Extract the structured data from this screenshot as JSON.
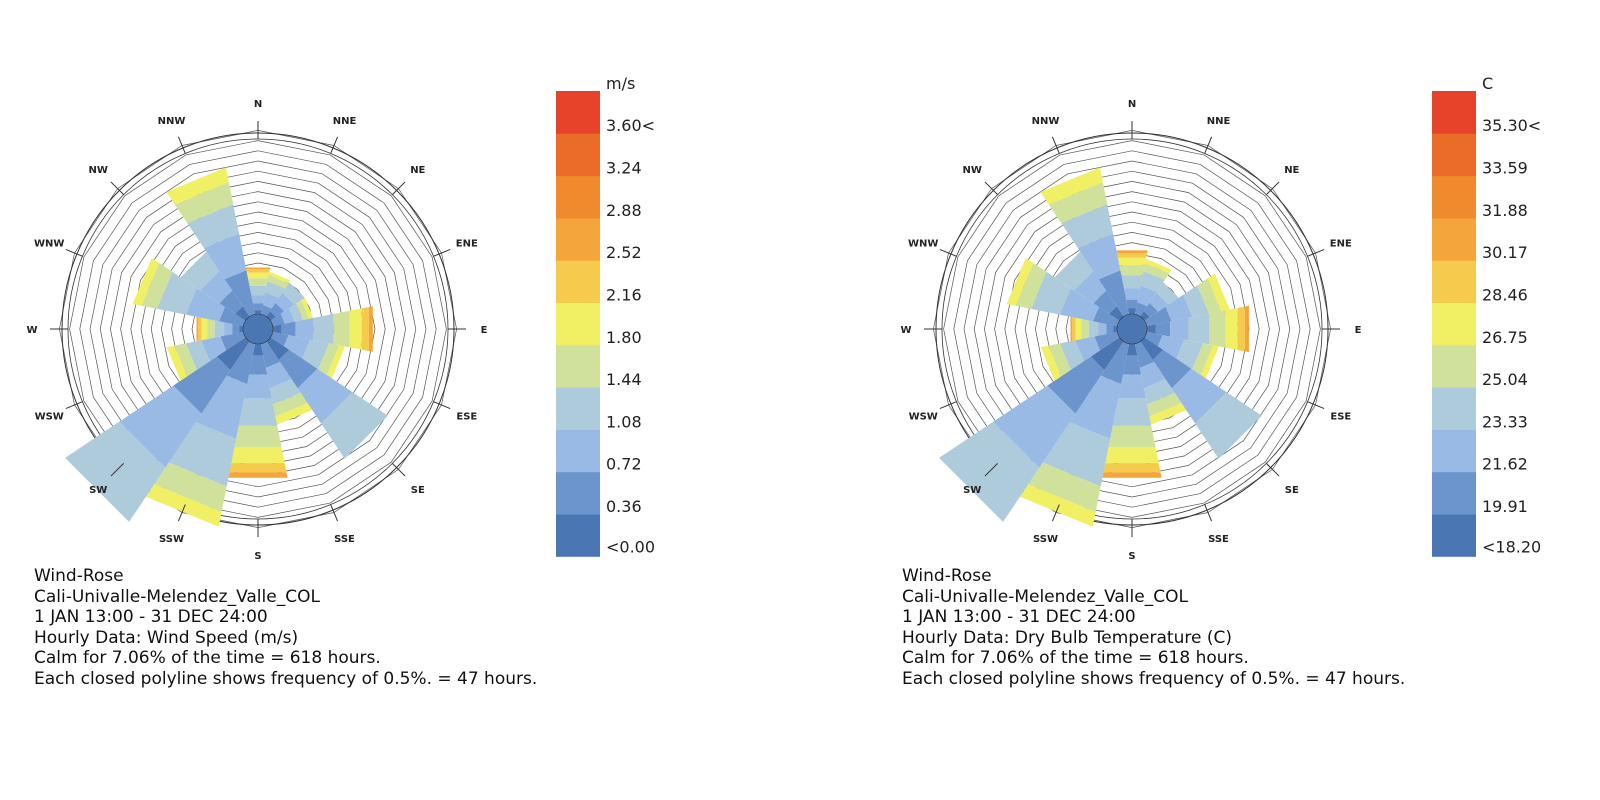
{
  "chart_data": [
    {
      "type": "wind-rose",
      "directions": [
        "N",
        "NNE",
        "NE",
        "ENE",
        "E",
        "ESE",
        "SE",
        "SSE",
        "S",
        "SSW",
        "SW",
        "WSW",
        "W",
        "WNW",
        "NW",
        "NNW"
      ],
      "direction_frequency_hours": [
        220,
        200,
        190,
        190,
        470,
        340,
        650,
        380,
        630,
        860,
        1000,
        360,
        220,
        520,
        360,
        690
      ],
      "bin_edges": [
        "<0.00",
        "0.36",
        "0.72",
        "1.08",
        "1.44",
        "1.80",
        "2.16",
        "2.52",
        "2.88",
        "3.24",
        "3.60<"
      ],
      "bin_colors": [
        "#4a77b4",
        "#6b95cc",
        "#98bae4",
        "#adcbdb",
        "#cfe19a",
        "#f1ef63",
        "#f5cb4d",
        "#f4a53b",
        "#ef8a2d",
        "#eb6b29",
        "#e7432a"
      ],
      "unit": "m/s",
      "calm_percent": 7.06,
      "polyline_step_percent": 0.5,
      "polyline_step_hours": 47,
      "caption": [
        "Wind-Rose",
        "Cali-Univalle-Melendez_Valle_COL",
        "1 JAN 13:00 - 31 DEC 24:00",
        "Hourly Data: Wind Speed (m/s)",
        "Calm for 7.06% of the time = 618 hours.",
        "Each closed polyline shows frequency of 0.5%. = 47 hours."
      ]
    },
    {
      "type": "wind-rose",
      "directions": [
        "N",
        "NNE",
        "NE",
        "ENE",
        "E",
        "ESE",
        "SE",
        "SSE",
        "S",
        "SSW",
        "SW",
        "WSW",
        "W",
        "WNW",
        "NW",
        "NNW"
      ],
      "direction_frequency_hours": [
        300,
        260,
        190,
        390,
        480,
        340,
        650,
        380,
        630,
        860,
        1000,
        360,
        220,
        520,
        360,
        690
      ],
      "bin_edges": [
        "<18.20",
        "19.91",
        "21.62",
        "23.33",
        "25.04",
        "26.75",
        "28.46",
        "30.17",
        "31.88",
        "33.59",
        "35.30<"
      ],
      "bin_colors": [
        "#4a77b4",
        "#6b95cc",
        "#98bae4",
        "#adcbdb",
        "#cfe19a",
        "#f1ef63",
        "#f5cb4d",
        "#f4a53b",
        "#ef8a2d",
        "#eb6b29",
        "#e7432a"
      ],
      "unit": "C",
      "calm_percent": 7.06,
      "polyline_step_percent": 0.5,
      "polyline_step_hours": 47,
      "caption": [
        "Wind-Rose",
        "Cali-Univalle-Melendez_Valle_COL",
        "1 JAN 13:00 - 31 DEC 24:00",
        "Hourly Data: Dry Bulb Temperature (C)",
        "Calm for 7.06% of the time = 618 hours.",
        "Each closed polyline shows frequency of 0.5%. = 47 hours."
      ]
    }
  ]
}
